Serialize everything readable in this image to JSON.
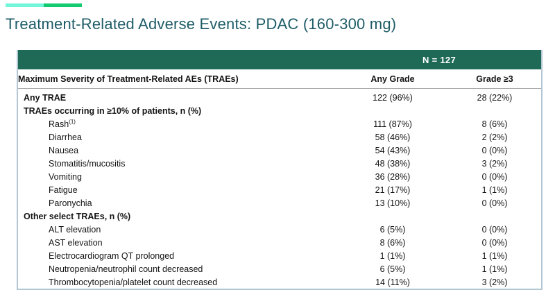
{
  "title": "Treatment-Related Adverse Events: PDAC (160-300 mg)",
  "colors": {
    "accent_left": "#72f6da",
    "accent_right": "#12ca70",
    "header_green": "#1f6a56",
    "title_teal": "#1e5c68",
    "table_border": "#b3c6d3"
  },
  "table": {
    "n_label": "N = 127",
    "columns": {
      "label": "Maximum Severity of Treatment-Related AEs (TRAEs)",
      "any_grade": "Any Grade",
      "grade_ge3": "Grade ≥3"
    },
    "rows": [
      {
        "label": "Any TRAE",
        "style": "section",
        "any_grade": "122 (96%)",
        "grade_ge3": "28 (22%)"
      },
      {
        "label": "TRAEs occurring in ≥10% of patients, n (%)",
        "style": "section",
        "any_grade": "",
        "grade_ge3": ""
      },
      {
        "label": "Rash",
        "sup": "(1)",
        "style": "item",
        "any_grade": "111 (87%)",
        "grade_ge3": "8 (6%)"
      },
      {
        "label": "Diarrhea",
        "style": "item",
        "any_grade": "58 (46%)",
        "grade_ge3": "2 (2%)"
      },
      {
        "label": "Nausea",
        "style": "item",
        "any_grade": "54 (43%)",
        "grade_ge3": "0 (0%)"
      },
      {
        "label": "Stomatitis/mucositis",
        "style": "item",
        "any_grade": "48 (38%)",
        "grade_ge3": "3 (2%)"
      },
      {
        "label": "Vomiting",
        "style": "item",
        "any_grade": "36 (28%)",
        "grade_ge3": "0 (0%)"
      },
      {
        "label": "Fatigue",
        "style": "item",
        "any_grade": "21 (17%)",
        "grade_ge3": "1 (1%)"
      },
      {
        "label": "Paronychia",
        "style": "item",
        "any_grade": "13 (10%)",
        "grade_ge3": "0 (0%)"
      },
      {
        "label": "Other select TRAEs, n (%)",
        "style": "section",
        "any_grade": "",
        "grade_ge3": ""
      },
      {
        "label": "ALT elevation",
        "style": "item",
        "any_grade": "6 (5%)",
        "grade_ge3": "0 (0%)"
      },
      {
        "label": "AST elevation",
        "style": "item",
        "any_grade": "8 (6%)",
        "grade_ge3": "0 (0%)"
      },
      {
        "label": "Electrocardiogram QT prolonged",
        "style": "item",
        "any_grade": "1 (1%)",
        "grade_ge3": "1 (1%)"
      },
      {
        "label": "Neutropenia/neutrophil count decreased",
        "style": "item",
        "any_grade": "6 (5%)",
        "grade_ge3": "1 (1%)"
      },
      {
        "label": "Thrombocytopenia/platelet count decreased",
        "style": "item",
        "any_grade": "14 (11%)",
        "grade_ge3": "3 (2%)"
      }
    ]
  }
}
